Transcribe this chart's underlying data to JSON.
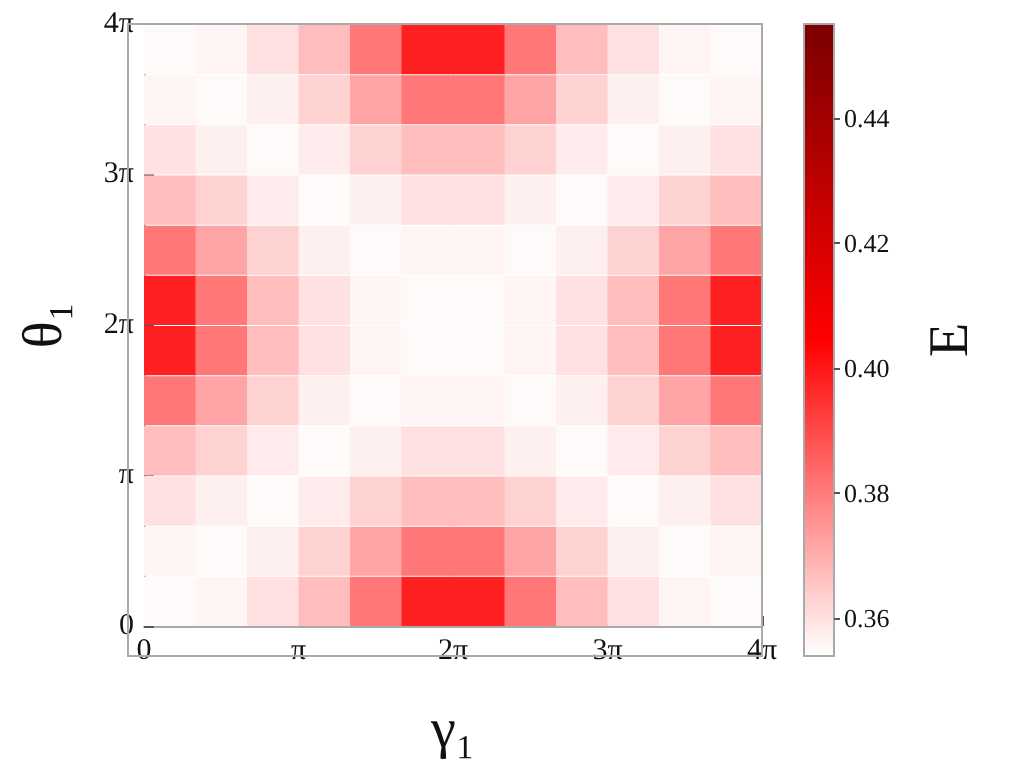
{
  "chart_data": {
    "type": "heatmap",
    "xlabel": "γ₁",
    "ylabel": "θ₁",
    "clabel": "E",
    "x": [
      0.5236,
      1.5708,
      2.618,
      3.6652,
      4.7124,
      5.7596,
      6.8068,
      7.854,
      8.9012,
      9.9484,
      10.9956,
      12.0428
    ],
    "y": [
      12.0428,
      10.9956,
      9.9484,
      8.9012,
      7.854,
      6.8068,
      5.7596,
      4.7124,
      3.6652,
      2.618,
      1.5708,
      0.5236
    ],
    "xlim": [
      0,
      12.566
    ],
    "xticks": [
      0,
      {
        "value": 3.1416,
        "label": "π"
      },
      {
        "value": 6.2832,
        "label": "2π"
      },
      {
        "value": 9.4248,
        "label": "3π"
      },
      {
        "value": 12.566,
        "label": "4π"
      }
    ],
    "ylim": [
      0,
      12.566
    ],
    "yticks": [
      0,
      {
        "value": 3.1416,
        "label": "π"
      },
      {
        "value": 6.2832,
        "label": "2π"
      },
      {
        "value": 9.4248,
        "label": "3π"
      },
      {
        "value": 12.566,
        "label": "4π"
      }
    ],
    "clim": [
      0.354,
      0.455
    ],
    "cticks": [
      0.36,
      0.38,
      {
        "value": 0.4,
        "label": "0.40"
      },
      0.42,
      0.44
    ],
    "cells": [
      [
        0.355,
        0.356,
        0.36,
        0.367,
        0.381,
        0.398,
        0.398,
        0.381,
        0.367,
        0.36,
        0.356,
        0.355
      ],
      [
        0.356,
        0.355,
        0.357,
        0.363,
        0.372,
        0.381,
        0.381,
        0.372,
        0.363,
        0.357,
        0.355,
        0.356
      ],
      [
        0.36,
        0.357,
        0.355,
        0.358,
        0.363,
        0.367,
        0.367,
        0.363,
        0.358,
        0.355,
        0.357,
        0.36
      ],
      [
        0.367,
        0.363,
        0.358,
        0.355,
        0.357,
        0.36,
        0.36,
        0.357,
        0.355,
        0.358,
        0.363,
        0.367
      ],
      [
        0.381,
        0.372,
        0.363,
        0.357,
        0.355,
        0.356,
        0.356,
        0.355,
        0.357,
        0.363,
        0.372,
        0.381
      ],
      [
        0.398,
        0.381,
        0.367,
        0.36,
        0.356,
        0.355,
        0.355,
        0.356,
        0.36,
        0.367,
        0.381,
        0.398
      ],
      [
        0.398,
        0.381,
        0.367,
        0.36,
        0.356,
        0.355,
        0.355,
        0.356,
        0.36,
        0.367,
        0.381,
        0.398
      ],
      [
        0.381,
        0.372,
        0.363,
        0.357,
        0.355,
        0.356,
        0.356,
        0.355,
        0.357,
        0.363,
        0.372,
        0.381
      ],
      [
        0.367,
        0.363,
        0.358,
        0.355,
        0.357,
        0.36,
        0.36,
        0.357,
        0.355,
        0.358,
        0.363,
        0.367
      ],
      [
        0.36,
        0.357,
        0.355,
        0.358,
        0.363,
        0.367,
        0.367,
        0.363,
        0.358,
        0.355,
        0.357,
        0.36
      ],
      [
        0.356,
        0.355,
        0.357,
        0.363,
        0.372,
        0.381,
        0.381,
        0.372,
        0.363,
        0.357,
        0.355,
        0.356
      ],
      [
        0.355,
        0.356,
        0.36,
        0.367,
        0.381,
        0.398,
        0.398,
        0.381,
        0.367,
        0.36,
        0.356,
        0.355
      ]
    ]
  }
}
